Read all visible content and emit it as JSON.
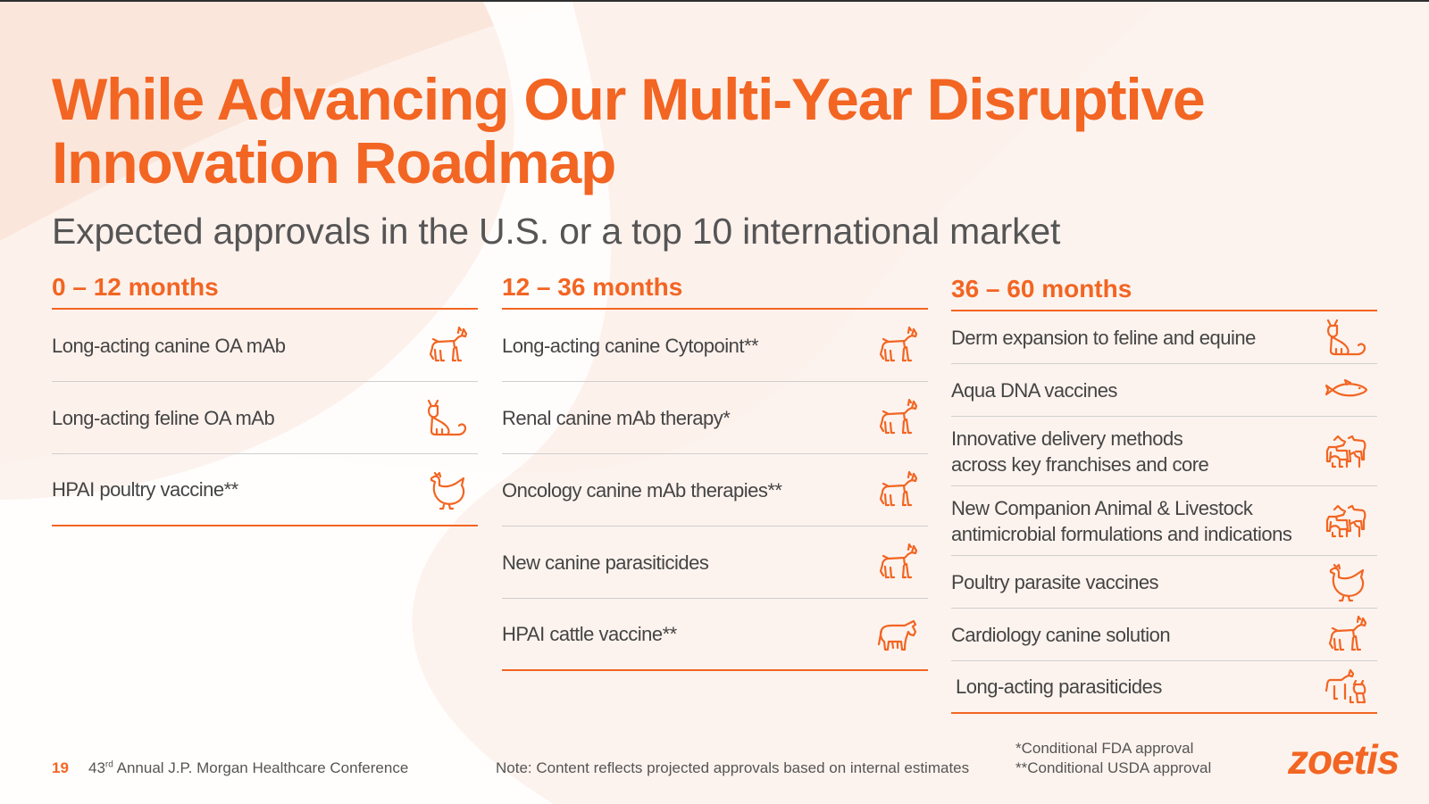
{
  "slide": {
    "title_line1": "While Advancing Our Multi-Year Disruptive",
    "title_line2": "Innovation Roadmap",
    "subtitle": "Expected approvals in the U.S. or a top 10 international market"
  },
  "colors": {
    "accent": "#f26522",
    "text": "#444444",
    "background_tint": "#fdf1ec"
  },
  "columns": [
    {
      "heading": "0 – 12 months",
      "items": [
        {
          "label": "Long-acting canine OA mAb",
          "icon": "dog-icon"
        },
        {
          "label": "Long-acting feline OA mAb",
          "icon": "cat-icon"
        },
        {
          "label": "HPAI poultry vaccine**",
          "icon": "chicken-icon"
        }
      ]
    },
    {
      "heading": "12 – 36 months",
      "items": [
        {
          "label": "Long-acting canine Cytopoint**",
          "icon": "dog-icon"
        },
        {
          "label": "Renal canine mAb therapy*",
          "icon": "dog-icon"
        },
        {
          "label": "Oncology canine mAb therapies**",
          "icon": "dog-icon"
        },
        {
          "label": "New canine parasiticides",
          "icon": "dog-icon"
        },
        {
          "label": "HPAI cattle vaccine**",
          "icon": "cow-icon"
        }
      ]
    },
    {
      "heading": "36 – 60 months",
      "items": [
        {
          "label": "Derm expansion to feline and equine",
          "icon": "cat-icon"
        },
        {
          "label": "Aqua DNA vaccines",
          "icon": "fish-icon"
        },
        {
          "label_line1": "Innovative delivery methods",
          "label_line2": "across key franchises and core",
          "icon": "livestock-group-icon"
        },
        {
          "label_line1": "New Companion Animal & Livestock",
          "label_line2": "antimicrobial formulations and indications",
          "icon": "livestock-group-icon"
        },
        {
          "label": "Poultry parasite vaccines",
          "icon": "chicken-icon"
        },
        {
          "label": "Cardiology canine solution",
          "icon": "dog-icon"
        },
        {
          "label": "Long-acting parasiticides",
          "icon": "dog-cat-icon"
        }
      ]
    }
  ],
  "footer": {
    "page_number": "19",
    "conference_prefix": "43",
    "conference_ordinal": "rd",
    "conference_suffix": " Annual J.P. Morgan Healthcare Conference",
    "note": "Note: Content reflects projected approvals based on internal estimates",
    "footnote_1": "*Conditional FDA approval",
    "footnote_2": "**Conditional USDA approval",
    "logo_text": "zoetis"
  }
}
